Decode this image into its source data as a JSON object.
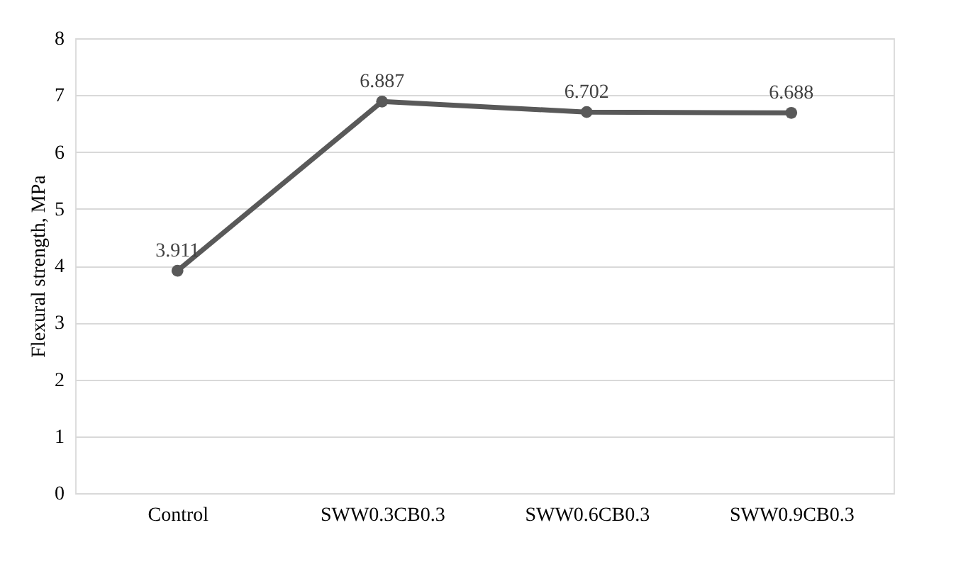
{
  "chart_data": {
    "type": "line",
    "ylabel": "Flexural strength, MPa",
    "categories": [
      "Control",
      "SWW0.3CB0.3",
      "SWW0.6CB0.3",
      "SWW0.9CB0.3"
    ],
    "series": [
      {
        "color": "#595959",
        "values": [
          3.911,
          6.887,
          6.702,
          6.688
        ]
      }
    ],
    "ylim": [
      0,
      8
    ],
    "yticks": [
      0,
      1,
      2,
      3,
      4,
      5,
      6,
      7,
      8
    ],
    "grid": "y",
    "marker": "circle",
    "line_style": "solid",
    "data_labels": true
  }
}
